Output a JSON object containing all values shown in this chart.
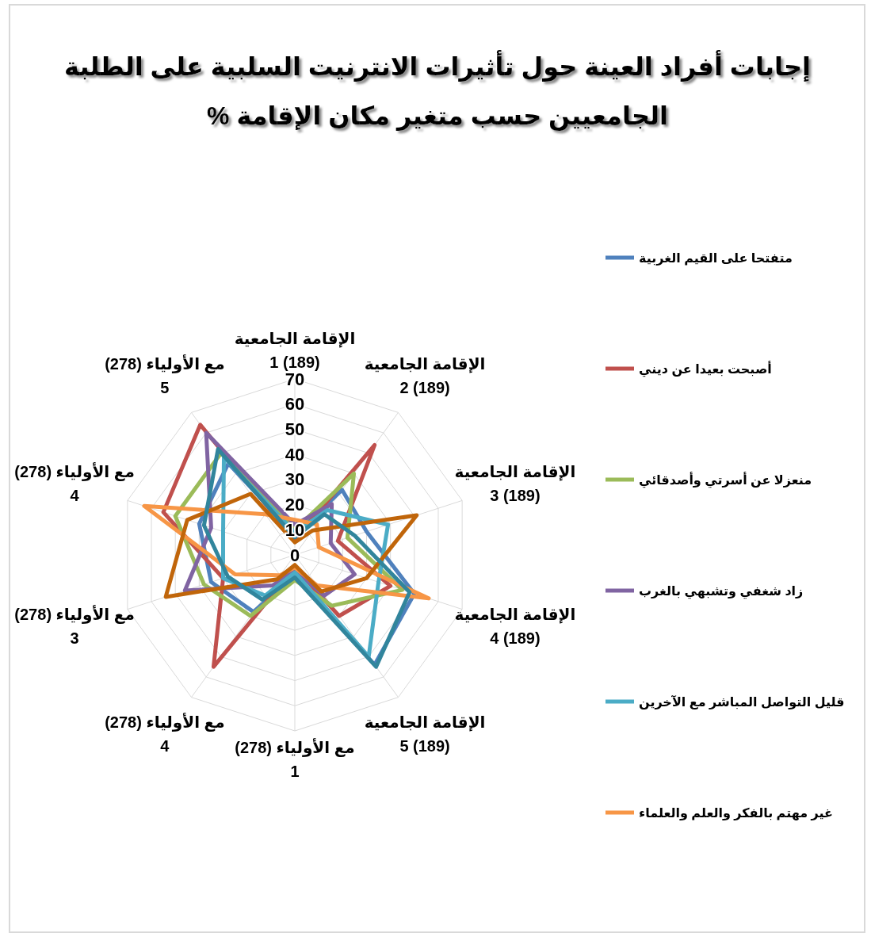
{
  "chart_data": {
    "type": "radar",
    "title": "إجابات أفراد العينة حول تأثيرات الانترنيت السلبية على الطلبة الجامعيين حسب متغير مكان الإقامة %",
    "categories": [
      "الإقامة الجامعية (189) 1",
      "الإقامة الجامعية (189) 2",
      "الإقامة الجامعية (189) 3",
      "الإقامة الجامعية (189) 4",
      "الإقامة الجامعية (189) 5",
      "مع الأولياء (278) 1",
      "مع الأولياء (278) 4",
      "مع الأولياء (278) 3",
      "مع الأولياء (278) 4",
      "مع الأولياء (278) 5"
    ],
    "series": [
      {
        "name": "متفتحا على القيم الغربية",
        "color": "#4f81bd",
        "values": [
          8,
          32,
          30,
          50,
          54,
          8,
          28,
          35,
          40,
          45
        ]
      },
      {
        "name": "أصبحت بعيدا عن ديني",
        "color": "#c0504d",
        "values": [
          6,
          54,
          18,
          40,
          30,
          5,
          55,
          30,
          55,
          64
        ]
      },
      {
        "name": "منعزلا عن أسرتي وأصدقائي",
        "color": "#9bbb59",
        "values": [
          10,
          40,
          22,
          45,
          25,
          10,
          30,
          38,
          50,
          50
        ]
      },
      {
        "name": "زاد شغفي وتشبهي بالغرب",
        "color": "#8064a2",
        "values": [
          12,
          25,
          15,
          25,
          20,
          6,
          15,
          46,
          35,
          60
        ]
      },
      {
        "name": "قليل التواصل المباشر مع الآخرين",
        "color": "#4bacc6",
        "values": [
          9,
          22,
          39,
          35,
          50,
          7,
          20,
          30,
          30,
          48
        ]
      },
      {
        "name": "غير مهتم بالفكر والعلم والعلماء",
        "color": "#f79646",
        "values": [
          14,
          15,
          10,
          56,
          15,
          5,
          10,
          25,
          63,
          20
        ]
      },
      {
        "color": "#c0650a",
        "values": [
          5,
          12,
          51,
          30,
          18,
          4,
          12,
          54,
          45,
          30
        ]
      },
      {
        "color": "#31859c",
        "values": [
          7,
          20,
          25,
          48,
          55,
          9,
          22,
          28,
          38,
          52
        ]
      }
    ],
    "ylim": [
      0,
      70
    ],
    "yticks": [
      0,
      10,
      20,
      30,
      40,
      50,
      60,
      70
    ],
    "grid": true,
    "legend": "right",
    "line_style": "solid"
  }
}
